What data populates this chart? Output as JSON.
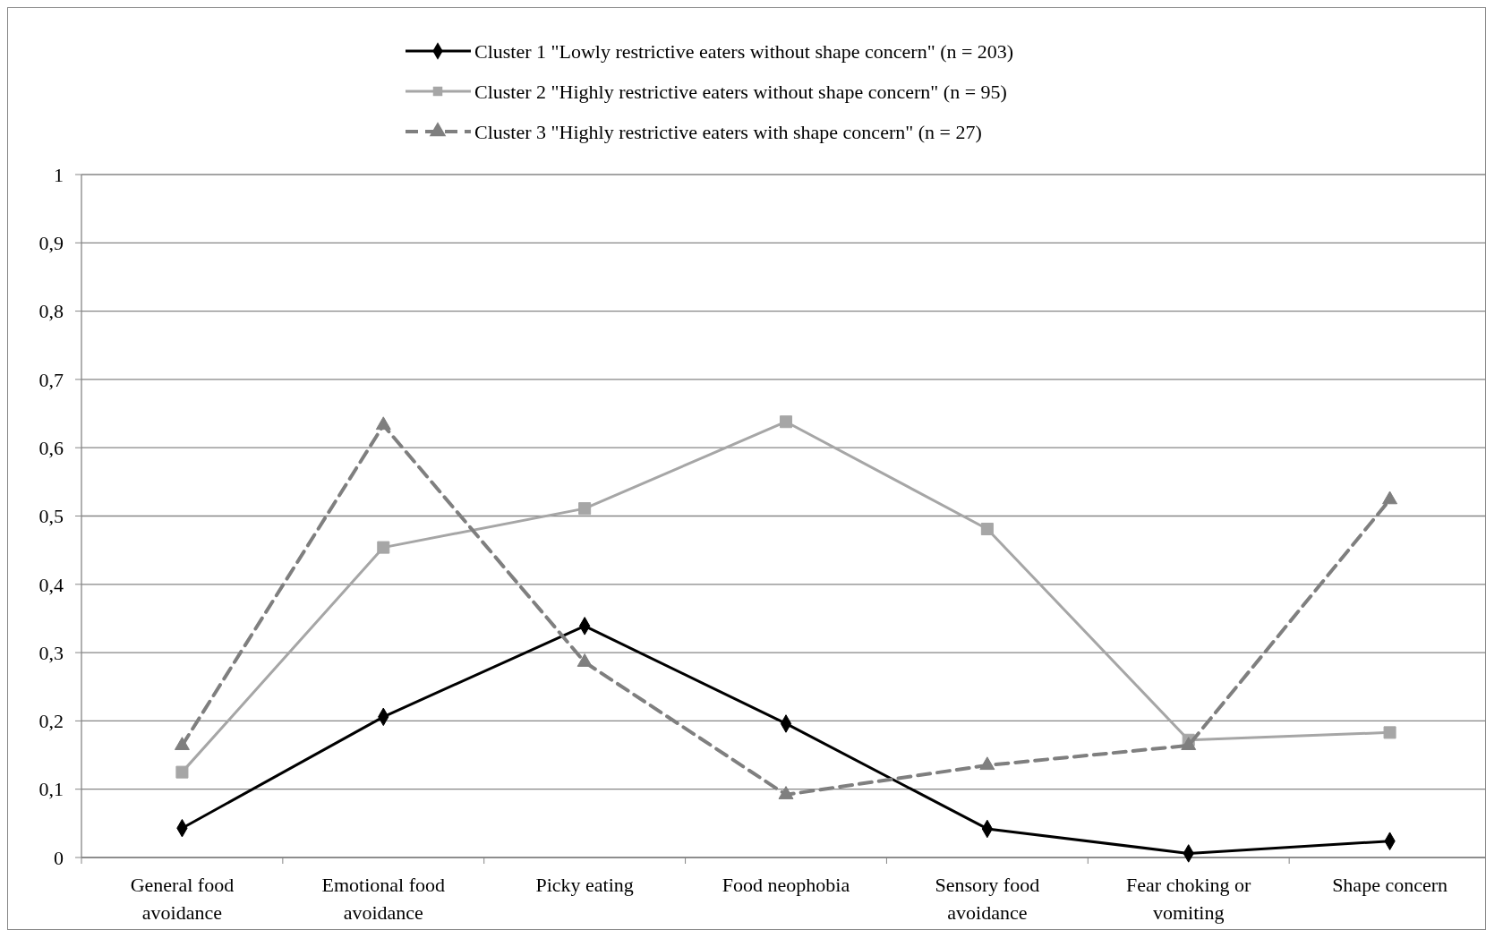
{
  "chart_data": {
    "type": "line",
    "categories": [
      "General food avoidance",
      "Emotional food avoidance",
      "Picky eating",
      "Food neophobia",
      "Sensory food avoidance",
      "Fear choking or vomiting",
      "Shape concern"
    ],
    "series": [
      {
        "name": "Cluster 1 \"Lowly restrictive eaters without shape concern\" (n = 203)",
        "color": "#000000",
        "marker": "diamond",
        "line_style": "solid",
        "values": [
          0.043,
          0.206,
          0.339,
          0.196,
          0.042,
          0.006,
          0.024
        ]
      },
      {
        "name": "Cluster 2 \"Highly restrictive eaters without shape concern\" (n = 95)",
        "color": "#a6a6a6",
        "marker": "square",
        "line_style": "solid",
        "values": [
          0.125,
          0.454,
          0.511,
          0.638,
          0.481,
          0.172,
          0.183
        ]
      },
      {
        "name": "Cluster 3 \"Highly restrictive eaters with shape concern\" (n = 27)",
        "color": "#7f7f7f",
        "marker": "triangle",
        "line_style": "dashed",
        "values": [
          0.164,
          0.633,
          0.286,
          0.092,
          0.135,
          0.164,
          0.524
        ]
      }
    ],
    "ylim": [
      0,
      1
    ],
    "yticks": [
      0,
      {
        "value": 0.1,
        "label": "0,1"
      },
      {
        "value": 0.2,
        "label": "0,2"
      },
      {
        "value": 0.3,
        "label": "0,3"
      },
      {
        "value": 0.4,
        "label": "0,4"
      },
      {
        "value": 0.5,
        "label": "0,5"
      },
      {
        "value": 0.6,
        "label": "0,6"
      },
      {
        "value": 0.7,
        "label": "0,7"
      },
      {
        "value": 0.8,
        "label": "0,8"
      },
      {
        "value": 0.9,
        "label": "0,9"
      },
      1
    ],
    "grid": "y",
    "legend": "top"
  }
}
